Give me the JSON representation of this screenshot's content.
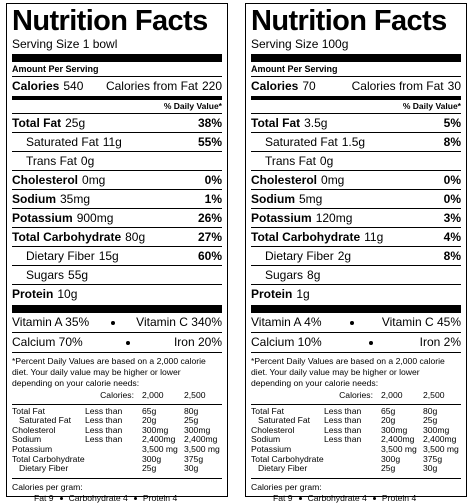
{
  "labels": [
    {
      "title": "Nutrition Facts",
      "serving_size": "Serving Size 1 bowl",
      "amount_per_serving": "Amount Per Serving",
      "calories": {
        "label": "Calories",
        "value": "540"
      },
      "calories_from_fat": {
        "label": "Calories from Fat",
        "value": "220"
      },
      "daily_value_header": "% Daily Value*",
      "nutrients": [
        {
          "name": "Total Fat",
          "amount": "25g",
          "dv": "38%",
          "sub": [
            {
              "name": "Saturated Fat",
              "amount": "11g",
              "dv": "55%"
            },
            {
              "name": "Trans Fat",
              "amount": "0g"
            }
          ]
        },
        {
          "name": "Cholesterol",
          "amount": "0mg",
          "dv": "0%"
        },
        {
          "name": "Sodium",
          "amount": "35mg",
          "dv": "1%"
        },
        {
          "name": "Potassium",
          "amount": "900mg",
          "dv": "26%"
        },
        {
          "name": "Total Carbohydrate",
          "amount": "80g",
          "dv": "27%",
          "sub": [
            {
              "name": "Dietary Fiber",
              "amount": "15g",
              "dv": "60%"
            },
            {
              "name": "Sugars",
              "amount": "55g"
            }
          ]
        }
      ],
      "protein": {
        "name": "Protein",
        "amount": "10g"
      },
      "vitamins": [
        [
          "Vitamin A 35%",
          "Vitamin C 340%"
        ],
        [
          "Calcium 70%",
          "Iron 20%"
        ]
      ],
      "footnote": "*Percent Daily Values are based on a 2,000 calorie diet. Your daily value may be higher or lower depending on your calorie needs:",
      "dv_table": {
        "header": {
          "label": "Calories:",
          "at_2000": "2,000",
          "at_2500": "2,500"
        },
        "rows": [
          {
            "nutrient": "Total Fat",
            "qualifier": "Less than",
            "at_2000": "65g",
            "at_2500": "80g"
          },
          {
            "nutrient": "Saturated Fat",
            "qualifier": "Less than",
            "at_2000": "20g",
            "at_2500": "25g"
          },
          {
            "nutrient": "Cholesterol",
            "qualifier": "Less than",
            "at_2000": "300mg",
            "at_2500": "300mg"
          },
          {
            "nutrient": "Sodium",
            "qualifier": "Less than",
            "at_2000": "2,400mg",
            "at_2500": "2,400mg"
          },
          {
            "nutrient": "Potassium",
            "at_2000": "3,500 mg",
            "at_2500": "3,500 mg"
          },
          {
            "nutrient": "Total Carbohydrate",
            "at_2000": "300g",
            "at_2500": "375g"
          },
          {
            "nutrient": "Dietary Fiber",
            "at_2000": "25g",
            "at_2500": "30g"
          }
        ]
      },
      "calories_per_gram": {
        "label": "Calories per gram:",
        "items": [
          "Fat 9",
          "Carbohydrate 4",
          "Protein 4"
        ]
      }
    },
    {
      "title": "Nutrition Facts",
      "serving_size": "Serving Size 100g",
      "amount_per_serving": "Amount Per Serving",
      "calories": {
        "label": "Calories",
        "value": "70"
      },
      "calories_from_fat": {
        "label": "Calories from Fat",
        "value": "30"
      },
      "daily_value_header": "% Daily Value*",
      "nutrients": [
        {
          "name": "Total Fat",
          "amount": "3.5g",
          "dv": "5%",
          "sub": [
            {
              "name": "Saturated Fat",
              "amount": "1.5g",
              "dv": "8%"
            },
            {
              "name": "Trans Fat",
              "amount": "0g"
            }
          ]
        },
        {
          "name": "Cholesterol",
          "amount": "0mg",
          "dv": "0%"
        },
        {
          "name": "Sodium",
          "amount": "5mg",
          "dv": "0%"
        },
        {
          "name": "Potassium",
          "amount": "120mg",
          "dv": "3%"
        },
        {
          "name": "Total Carbohydrate",
          "amount": "11g",
          "dv": "4%",
          "sub": [
            {
              "name": "Dietary Fiber",
              "amount": "2g",
              "dv": "8%"
            },
            {
              "name": "Sugars",
              "amount": "8g"
            }
          ]
        }
      ],
      "protein": {
        "name": "Protein",
        "amount": "1g"
      },
      "vitamins": [
        [
          "Vitamin A 4%",
          "Vitamin C 45%"
        ],
        [
          "Calcium 10%",
          "Iron 2%"
        ]
      ],
      "footnote": "*Percent Daily Values are based on a 2,000 calorie diet. Your daily value may be higher or lower depending on your calorie needs:",
      "dv_table": {
        "header": {
          "label": "Calories:",
          "at_2000": "2,000",
          "at_2500": "2,500"
        },
        "rows": [
          {
            "nutrient": "Total Fat",
            "qualifier": "Less than",
            "at_2000": "65g",
            "at_2500": "80g"
          },
          {
            "nutrient": "Saturated Fat",
            "qualifier": "Less than",
            "at_2000": "20g",
            "at_2500": "25g"
          },
          {
            "nutrient": "Cholesterol",
            "qualifier": "Less than",
            "at_2000": "300mg",
            "at_2500": "300mg"
          },
          {
            "nutrient": "Sodium",
            "qualifier": "Less than",
            "at_2000": "2,400mg",
            "at_2500": "2,400mg"
          },
          {
            "nutrient": "Potassium",
            "at_2000": "3,500 mg",
            "at_2500": "3,500 mg"
          },
          {
            "nutrient": "Total Carbohydrate",
            "at_2000": "300g",
            "at_2500": "375g"
          },
          {
            "nutrient": "Dietary Fiber",
            "at_2000": "25g",
            "at_2500": "30g"
          }
        ]
      },
      "calories_per_gram": {
        "label": "Calories per gram:",
        "items": [
          "Fat 9",
          "Carbohydrate 4",
          "Protein 4"
        ]
      }
    }
  ]
}
